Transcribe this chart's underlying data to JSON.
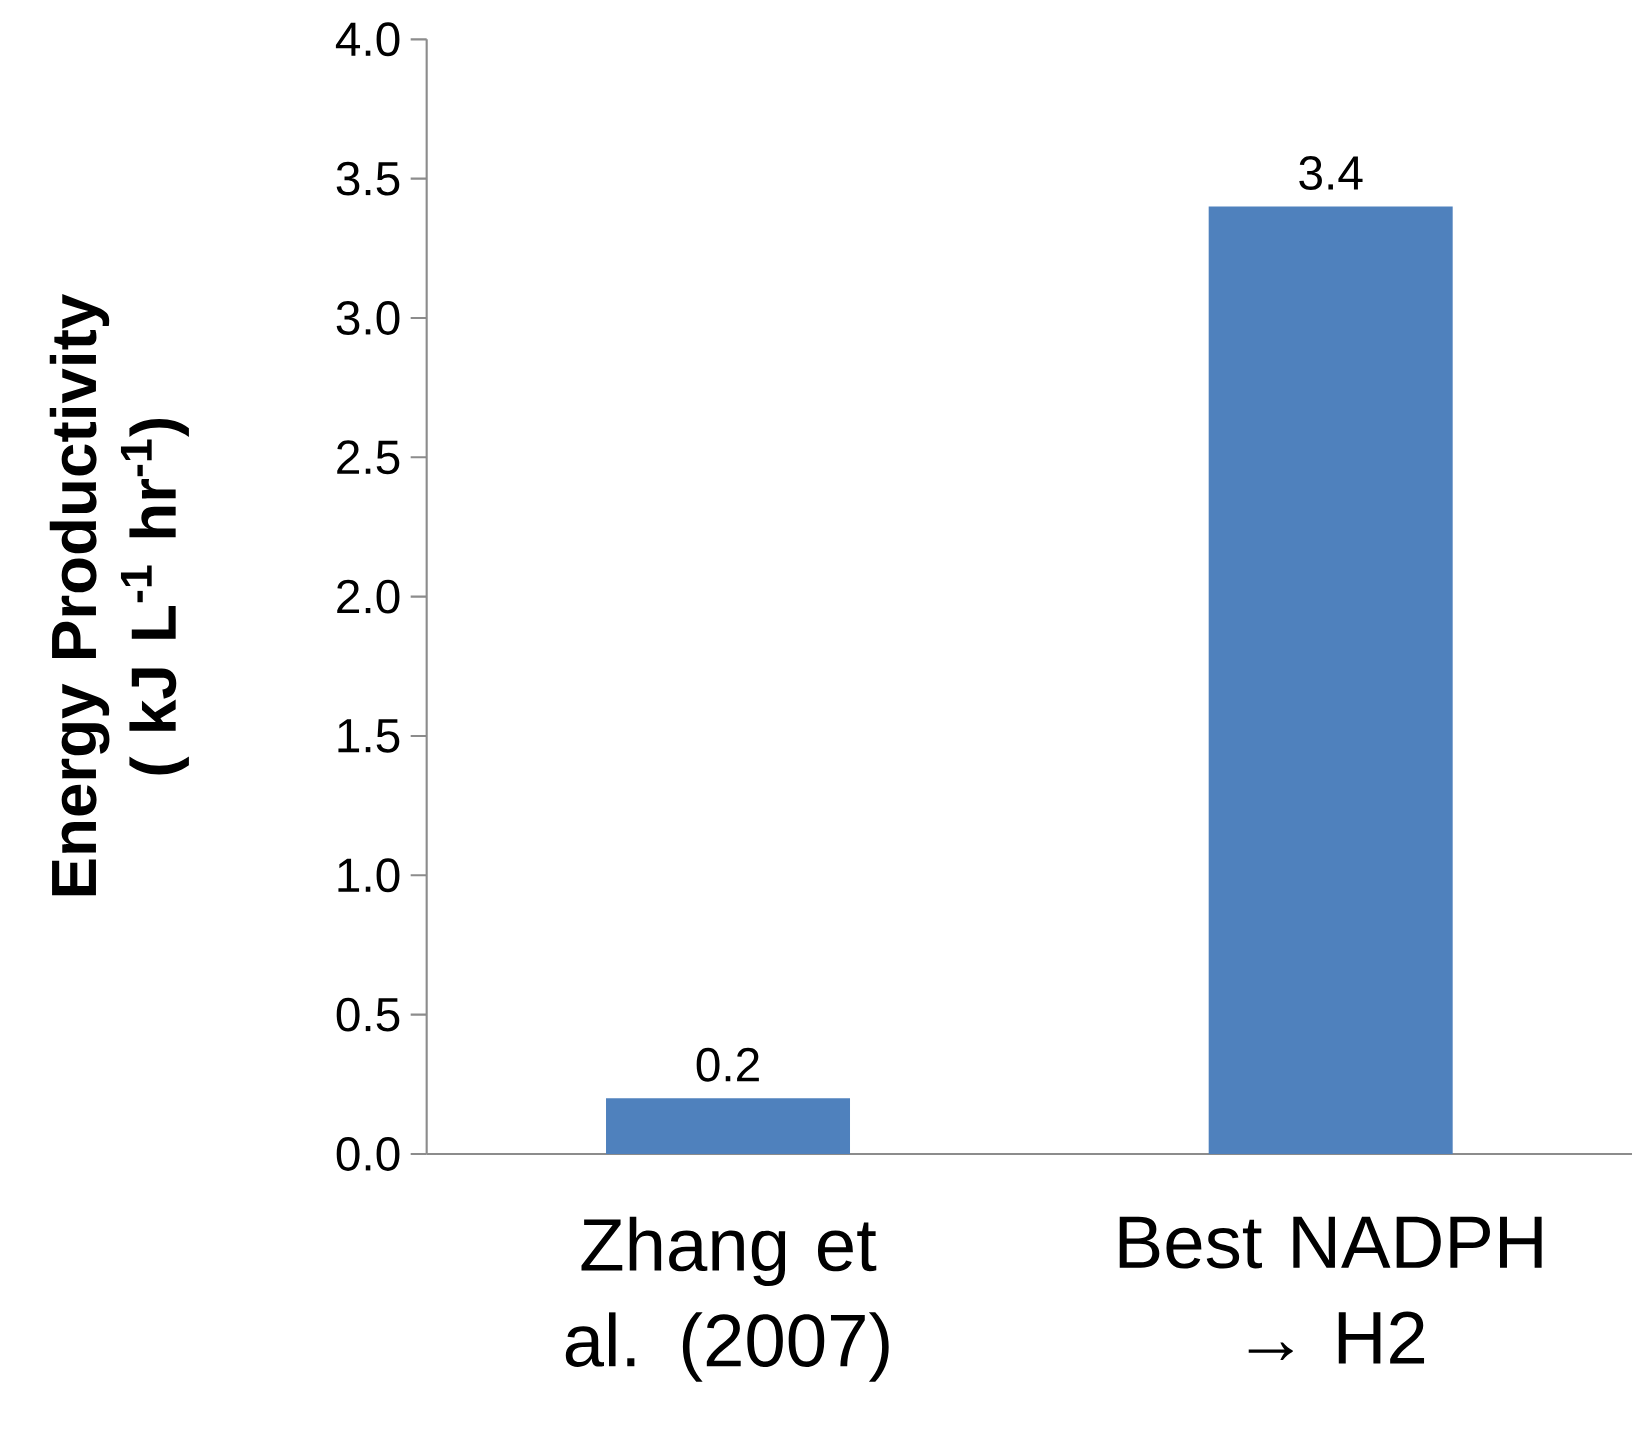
{
  "chart_data": {
    "type": "bar",
    "ylabel": "Energy Productivity ( kJ L$^{-1}$ hr$^{-1}$)",
    "categories": [
      "Zhang et al. (2007)",
      "Best NADPH → H2"
    ],
    "values": [
      0.2,
      3.4
    ],
    "color": "#4f81bd",
    "data_labels": true,
    "ylim": [
      0,
      4
    ],
    "yticks": [
      {
        "value": 0,
        "label": "0.0"
      },
      {
        "value": 0.5,
        "label": "0.5"
      },
      {
        "value": 1,
        "label": "1.0"
      },
      {
        "value": 1.5,
        "label": "1.5"
      },
      {
        "value": 2,
        "label": "2.0"
      },
      {
        "value": 2.5,
        "label": "2.5"
      },
      {
        "value": 3,
        "label": "3.0"
      },
      {
        "value": 3.5,
        "label": "3.5"
      },
      {
        "value": 4,
        "label": "4.0"
      }
    ]
  }
}
